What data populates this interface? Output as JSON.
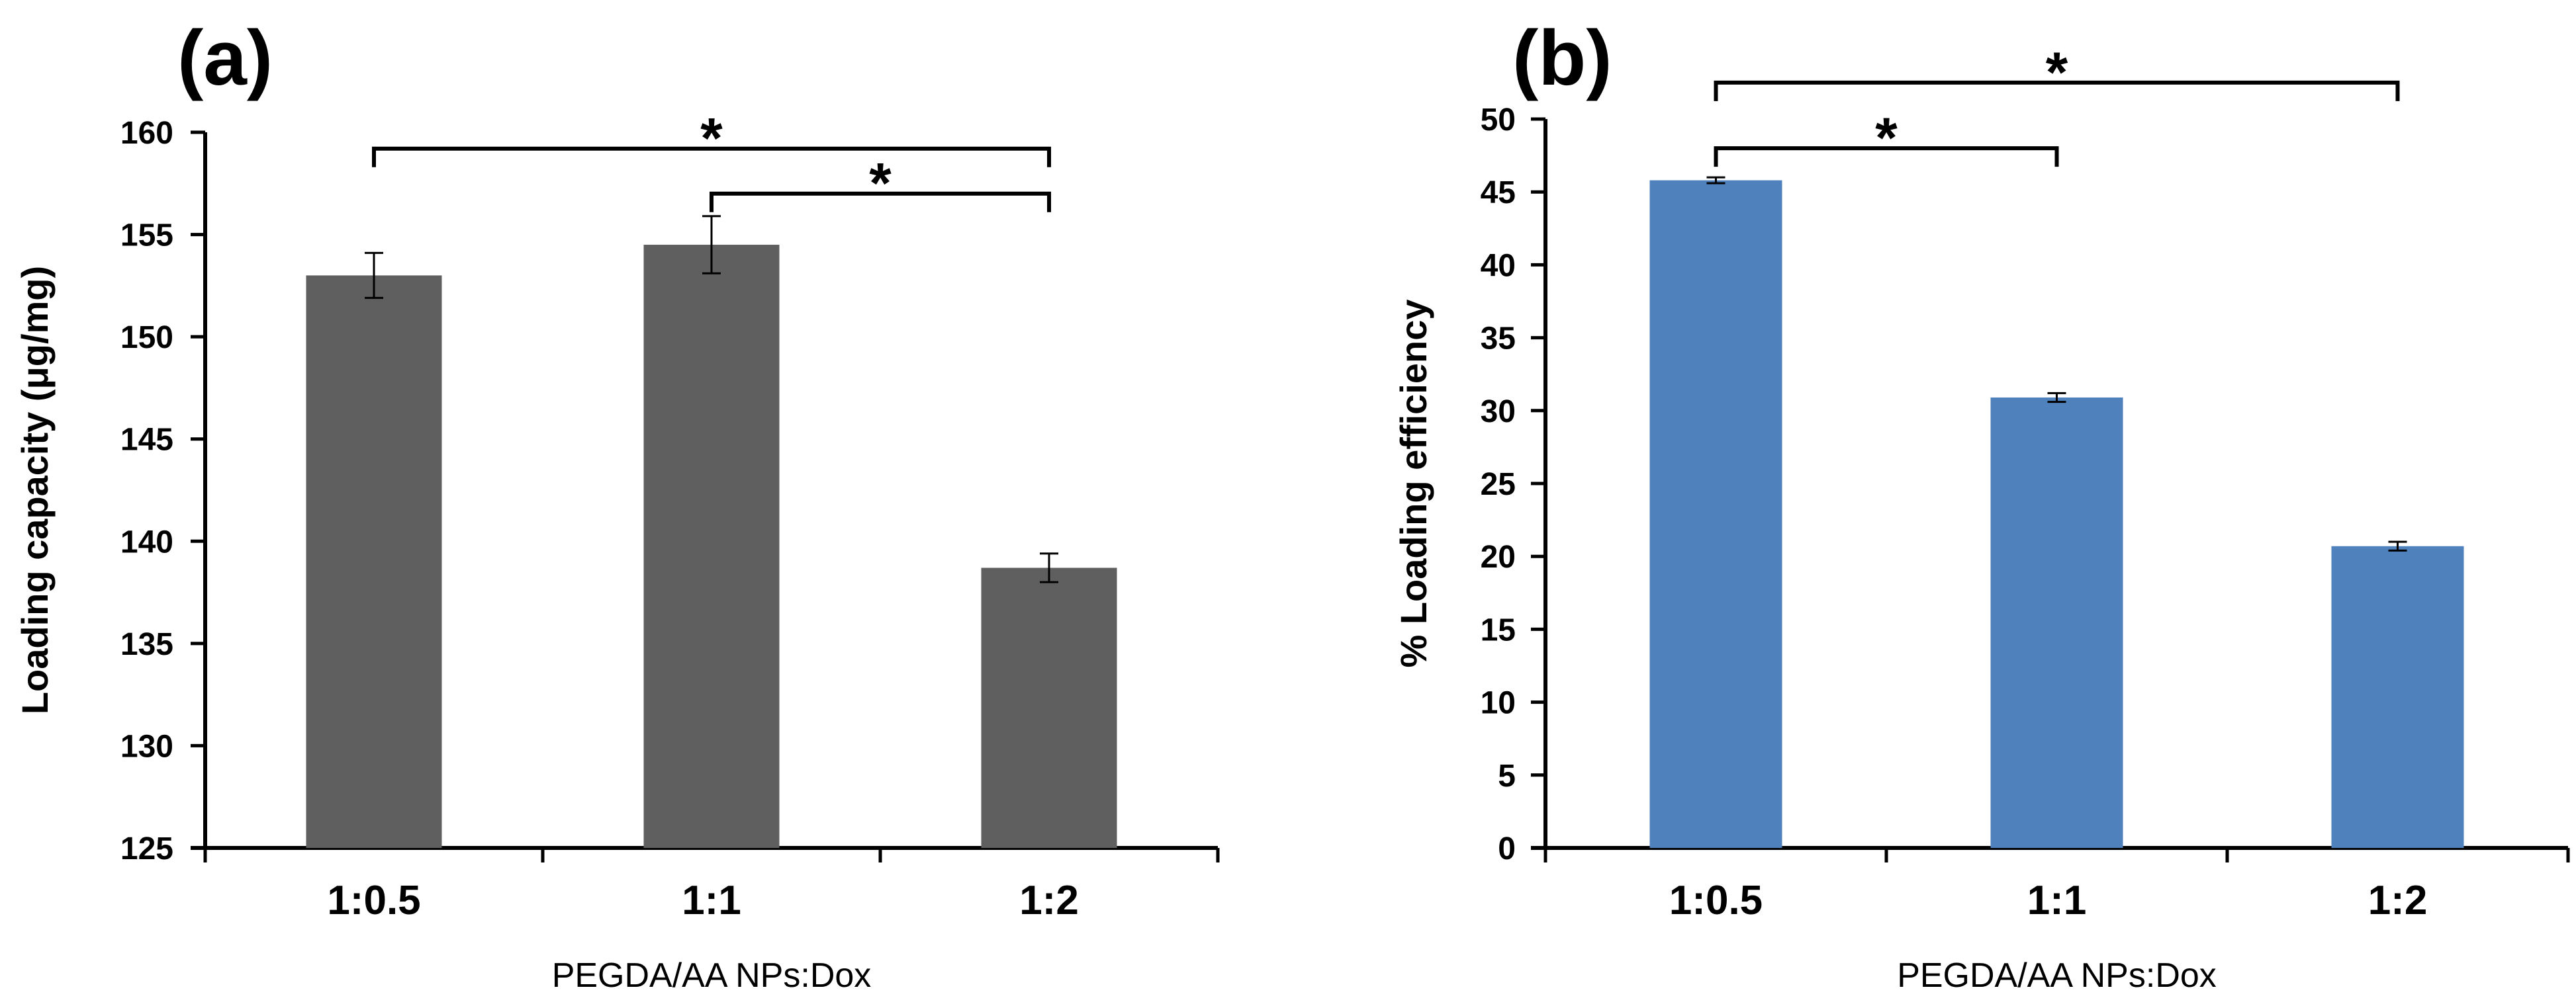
{
  "chart_data": [
    {
      "type": "bar",
      "panel_label": "(a)",
      "categories": [
        "1:0.5",
        "1:1",
        "1:2"
      ],
      "values": [
        153.0,
        154.5,
        138.7
      ],
      "errors": [
        1.1,
        1.4,
        0.7
      ],
      "ylabel": "Loading capacity (μg/mg)",
      "xlabel": "PEGDA/AA NPs:Dox",
      "ylim": [
        125,
        160
      ],
      "yticks": [
        125,
        130,
        135,
        140,
        145,
        150,
        155,
        160
      ],
      "bar_color": "#5f5f5f",
      "significance": [
        {
          "from": 0,
          "to": 2,
          "label": "*",
          "y": 159.2
        },
        {
          "from": 1,
          "to": 2,
          "label": "*",
          "y": 157.0
        }
      ]
    },
    {
      "type": "bar",
      "panel_label": "(b)",
      "categories": [
        "1:0.5",
        "1:1",
        "1:2"
      ],
      "values": [
        45.8,
        30.9,
        20.7
      ],
      "errors": [
        0.2,
        0.3,
        0.3
      ],
      "ylabel": "% Loading efficiency",
      "xlabel": "PEGDA/AA NPs:Dox",
      "ylim": [
        0,
        50
      ],
      "yticks": [
        0,
        5,
        10,
        15,
        20,
        25,
        30,
        35,
        40,
        45,
        50
      ],
      "bar_color": "#4f81bd",
      "significance": [
        {
          "from": 0,
          "to": 1,
          "label": "*",
          "y": 48.0
        },
        {
          "from": 0,
          "to": 2,
          "label": "*",
          "y": 52.5
        }
      ]
    }
  ]
}
